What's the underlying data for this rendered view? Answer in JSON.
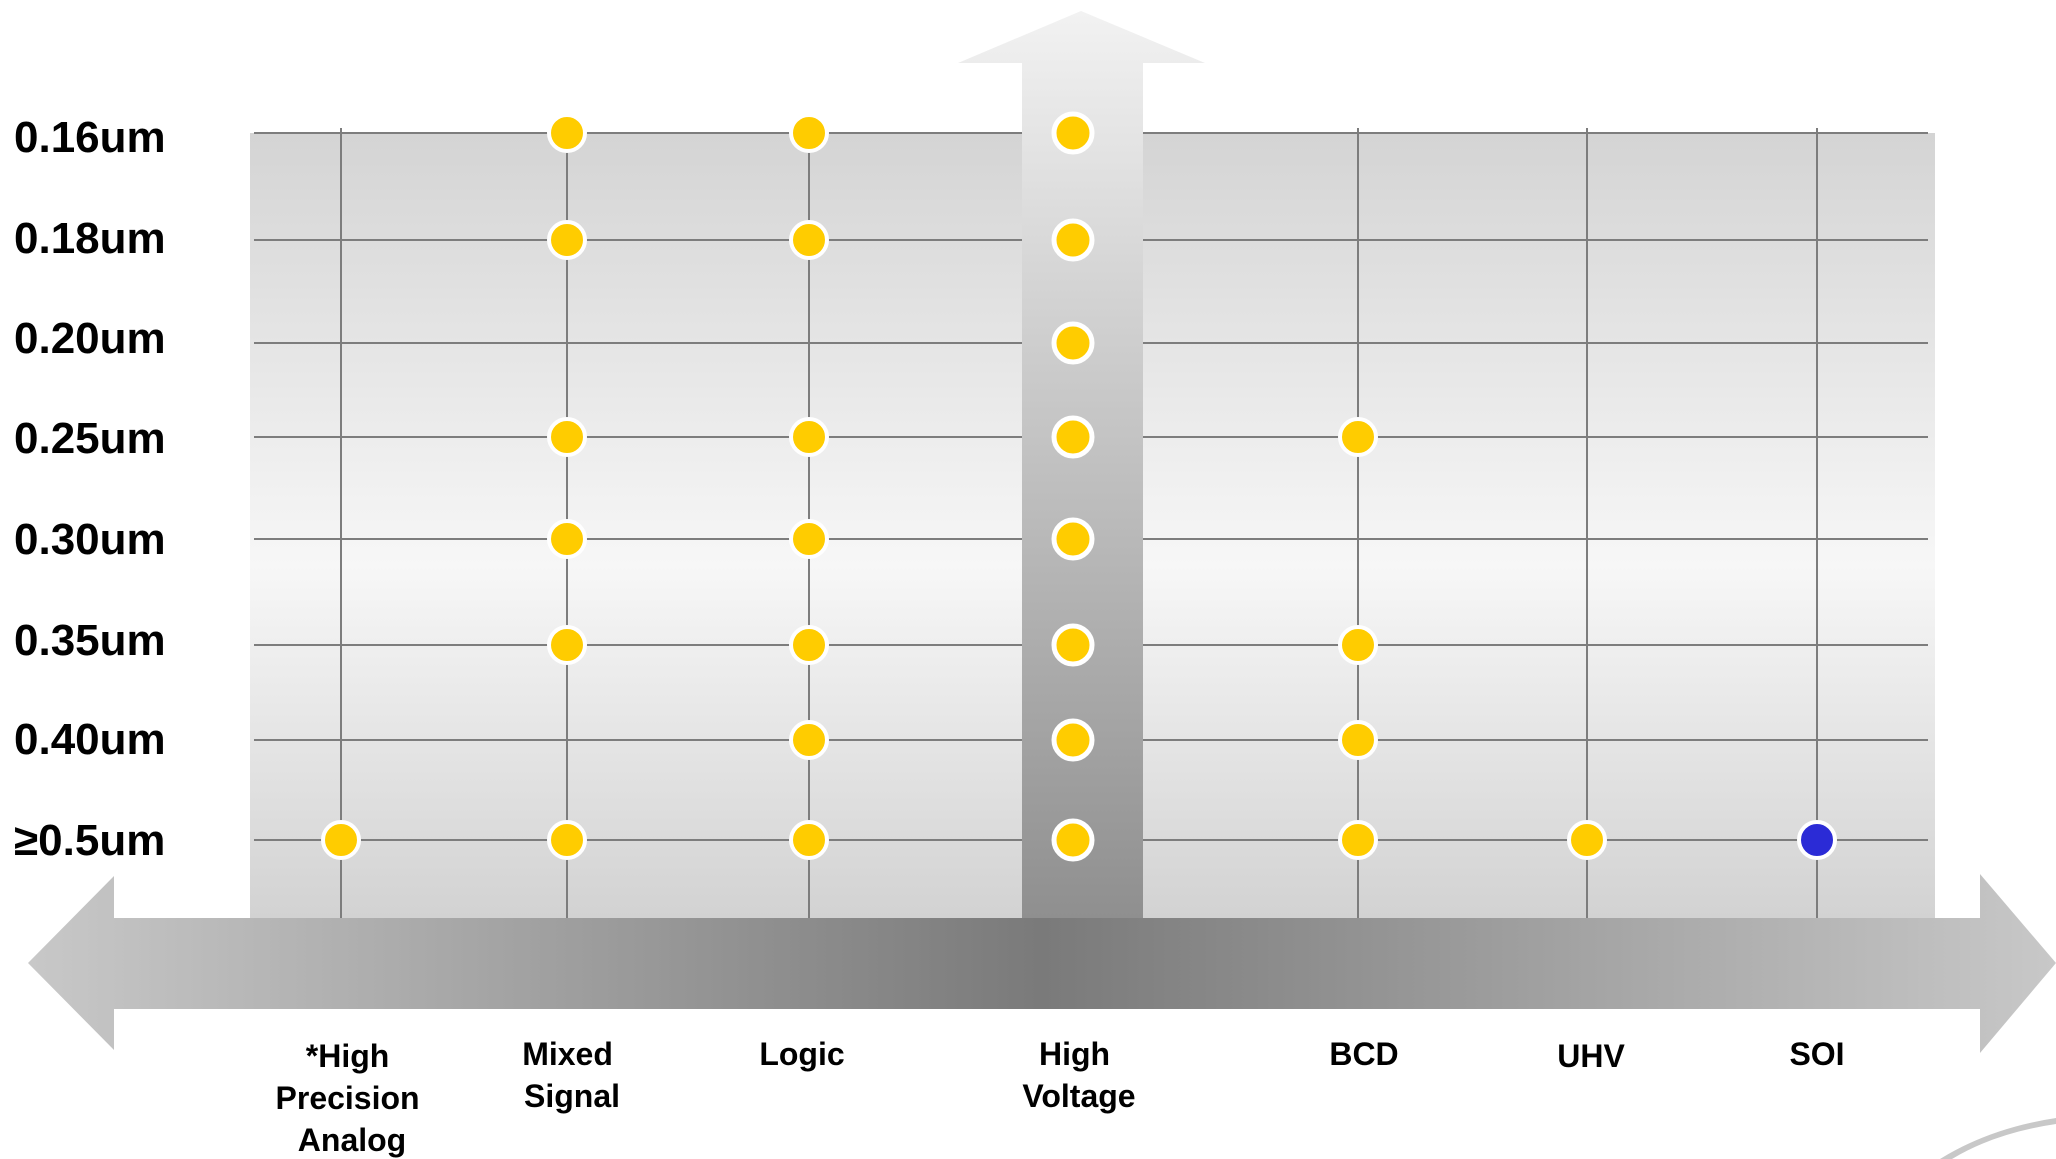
{
  "chart_data": {
    "type": "scatter",
    "title": "",
    "xlabel": "",
    "ylabel": "",
    "x_categories": [
      [
        "*High",
        "Precision",
        "Analog"
      ],
      [
        "Mixed",
        "Signal"
      ],
      [
        "Logic"
      ],
      [
        "High",
        "Voltage"
      ],
      [
        "BCD"
      ],
      [
        "UHV"
      ],
      [
        "SOI"
      ]
    ],
    "y_categories": [
      "0.16um",
      "0.18um",
      "0.20um",
      "0.25um",
      "0.30um",
      "0.35um",
      "0.40um",
      "≥0.5um"
    ],
    "grid": true,
    "colors": {
      "offered": "#ffcc00",
      "special": "#2b2bd6"
    },
    "points": [
      {
        "x": 0,
        "y": 7,
        "color": "offered"
      },
      {
        "x": 1,
        "y": 0,
        "color": "offered"
      },
      {
        "x": 1,
        "y": 1,
        "color": "offered"
      },
      {
        "x": 1,
        "y": 3,
        "color": "offered"
      },
      {
        "x": 1,
        "y": 4,
        "color": "offered"
      },
      {
        "x": 1,
        "y": 5,
        "color": "offered"
      },
      {
        "x": 1,
        "y": 7,
        "color": "offered"
      },
      {
        "x": 2,
        "y": 0,
        "color": "offered"
      },
      {
        "x": 2,
        "y": 1,
        "color": "offered"
      },
      {
        "x": 2,
        "y": 3,
        "color": "offered"
      },
      {
        "x": 2,
        "y": 4,
        "color": "offered"
      },
      {
        "x": 2,
        "y": 5,
        "color": "offered"
      },
      {
        "x": 2,
        "y": 6,
        "color": "offered"
      },
      {
        "x": 2,
        "y": 7,
        "color": "offered"
      },
      {
        "x": 3,
        "y": 0,
        "color": "offered"
      },
      {
        "x": 3,
        "y": 1,
        "color": "offered"
      },
      {
        "x": 3,
        "y": 2,
        "color": "offered"
      },
      {
        "x": 3,
        "y": 3,
        "color": "offered"
      },
      {
        "x": 3,
        "y": 4,
        "color": "offered"
      },
      {
        "x": 3,
        "y": 5,
        "color": "offered"
      },
      {
        "x": 3,
        "y": 6,
        "color": "offered"
      },
      {
        "x": 3,
        "y": 7,
        "color": "offered"
      },
      {
        "x": 4,
        "y": 3,
        "color": "offered"
      },
      {
        "x": 4,
        "y": 5,
        "color": "offered"
      },
      {
        "x": 4,
        "y": 6,
        "color": "offered"
      },
      {
        "x": 4,
        "y": 7,
        "color": "offered"
      },
      {
        "x": 5,
        "y": 7,
        "color": "offered"
      },
      {
        "x": 6,
        "y": 7,
        "color": "special"
      }
    ]
  }
}
